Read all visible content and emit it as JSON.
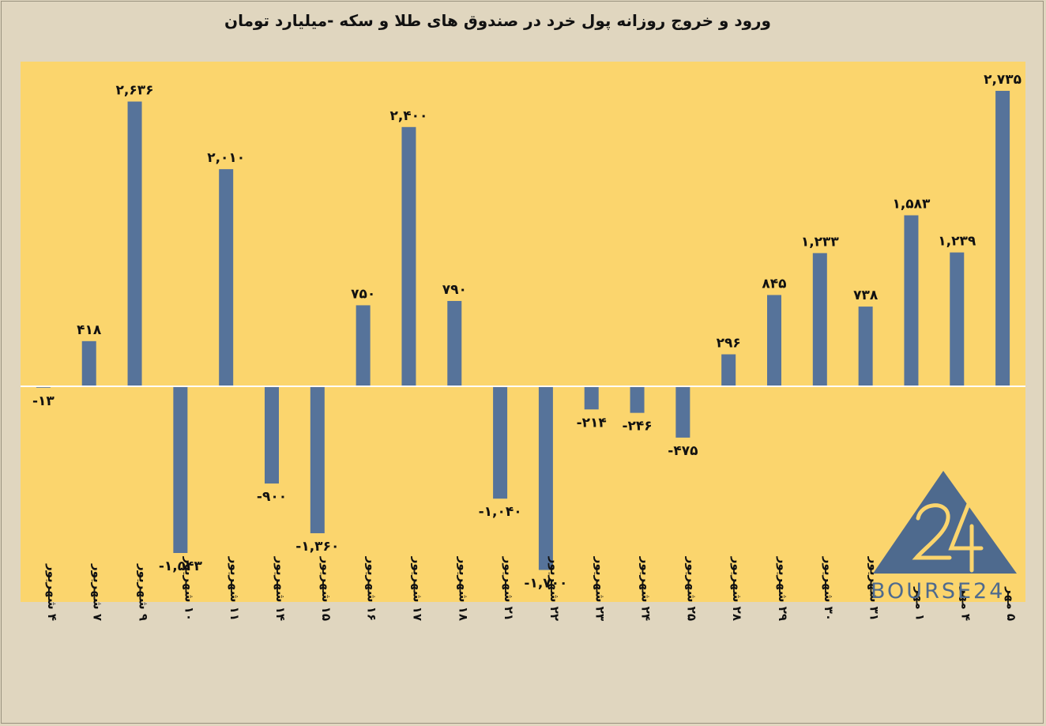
{
  "chart_data": {
    "type": "bar",
    "title": "ورود و خروج روزانه پول خرد در صندوق های طلا و سکه -میلیارد تومان",
    "categories": [
      "۴ شهریور",
      "۷ شهریور",
      "۹ شهریور",
      "۱۰ شهریور",
      "۱۱ شهریور",
      "۱۴ شهریور",
      "۱۵ شهریور",
      "۱۶ شهریور",
      "۱۷ شهریور",
      "۱۸ شهریور",
      "۲۱ شهریور",
      "۲۲ شهریور",
      "۲۳ شهریور",
      "۲۴ شهریور",
      "۲۵ شهریور",
      "۲۸ شهریور",
      "۲۹ شهریور",
      "۳۰ شهریور",
      "۳۱ شهریور",
      "۱ مهر",
      "۴ مهر",
      "۵ مهر"
    ],
    "values": [
      -13,
      418,
      2636,
      -1543,
      2010,
      -900,
      -1360,
      750,
      2400,
      790,
      -1040,
      -1700,
      -214,
      -246,
      -475,
      296,
      845,
      1233,
      738,
      1583,
      1239,
      2735
    ],
    "value_labels": [
      "-۱۳",
      "۴۱۸",
      "۲,۶۳۶",
      "-۱,۵۴۳",
      "۲,۰۱۰",
      "-۹۰۰",
      "-۱,۳۶۰",
      "۷۵۰",
      "۲,۴۰۰",
      "۷۹۰",
      "-۱,۰۴۰",
      "-۱,۷۰۰",
      "-۲۱۴",
      "-۲۴۶",
      "-۴۷۵",
      "۲۹۶",
      "۸۴۵",
      "۱,۲۳۳",
      "۷۳۸",
      "۱,۵۸۳",
      "۱,۲۳۹",
      "۲,۷۳۵"
    ],
    "xlabel": "",
    "ylabel": "",
    "grid": false,
    "colors": {
      "bar": "#56739a",
      "plot_bg": "#fbd56d",
      "page_bg": "#e0d6bf"
    }
  },
  "logo": {
    "text": "BOURSE24",
    "mark": "24",
    "color": "#4e6a8e"
  }
}
